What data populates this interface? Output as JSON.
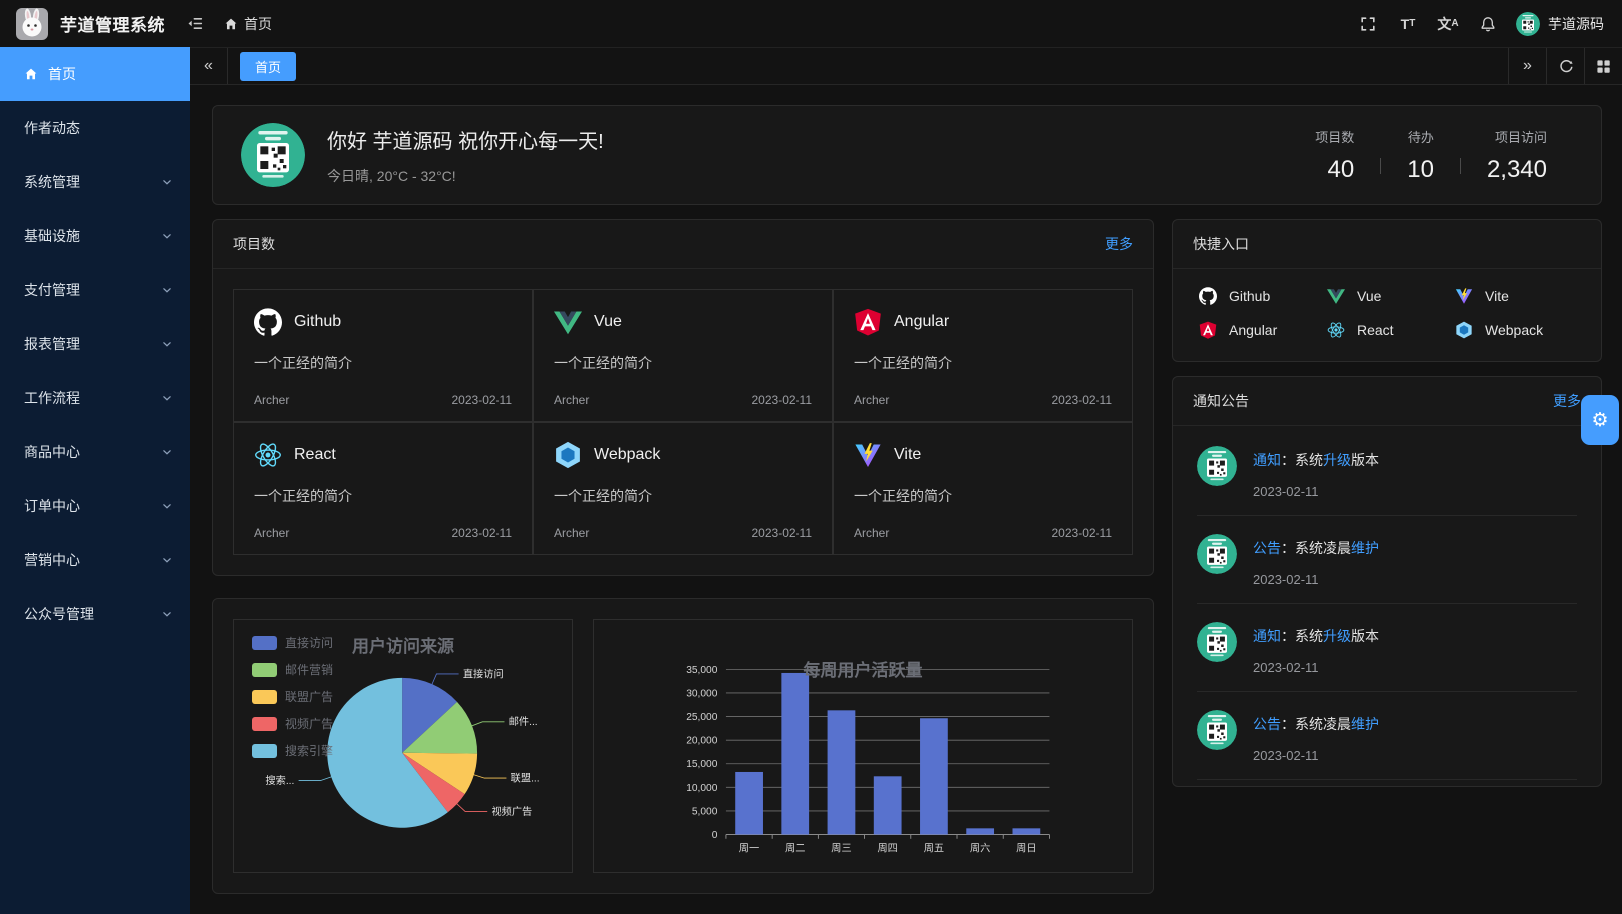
{
  "app": {
    "title": "芋道管理系统"
  },
  "topbar": {
    "breadcrumb_home": "首页",
    "font_size_icon_text": "TT",
    "translate_icon_text": "文A",
    "user_name": "芋道源码"
  },
  "tabbar": {
    "active_tab": "首页"
  },
  "sidebar": {
    "items": [
      {
        "label": "首页",
        "active": true,
        "has_children": false
      },
      {
        "label": "作者动态",
        "active": false,
        "has_children": false
      },
      {
        "label": "系统管理",
        "active": false,
        "has_children": true
      },
      {
        "label": "基础设施",
        "active": false,
        "has_children": true
      },
      {
        "label": "支付管理",
        "active": false,
        "has_children": true
      },
      {
        "label": "报表管理",
        "active": false,
        "has_children": true
      },
      {
        "label": "工作流程",
        "active": false,
        "has_children": true
      },
      {
        "label": "商品中心",
        "active": false,
        "has_children": true
      },
      {
        "label": "订单中心",
        "active": false,
        "has_children": true
      },
      {
        "label": "营销中心",
        "active": false,
        "has_children": true
      },
      {
        "label": "公众号管理",
        "active": false,
        "has_children": true
      }
    ]
  },
  "welcome": {
    "greeting": "你好 芋道源码 祝你开心每一天!",
    "weather": "今日晴, 20°C - 32°C!",
    "stats": [
      {
        "label": "项目数",
        "value": "40"
      },
      {
        "label": "待办",
        "value": "10"
      },
      {
        "label": "项目访问",
        "value": "2,340"
      }
    ]
  },
  "projects": {
    "header": "项目数",
    "more": "更多",
    "desc": "一个正经的简介",
    "author": "Archer",
    "date": "2023-02-11",
    "items": [
      {
        "name": "Github",
        "icon": "github"
      },
      {
        "name": "Vue",
        "icon": "vue"
      },
      {
        "name": "Angular",
        "icon": "angular"
      },
      {
        "name": "React",
        "icon": "react"
      },
      {
        "name": "Webpack",
        "icon": "webpack"
      },
      {
        "name": "Vite",
        "icon": "vite"
      }
    ]
  },
  "shortcuts": {
    "header": "快捷入口",
    "items": [
      {
        "label": "Github",
        "icon": "github"
      },
      {
        "label": "Vue",
        "icon": "vue"
      },
      {
        "label": "Vite",
        "icon": "vite"
      },
      {
        "label": "Angular",
        "icon": "angular"
      },
      {
        "label": "React",
        "icon": "react"
      },
      {
        "label": "Webpack",
        "icon": "webpack"
      }
    ]
  },
  "notice": {
    "header": "通知公告",
    "more": "更多",
    "items": [
      {
        "tag": "通知",
        "pre": "：系统",
        "hl": "升级",
        "post": "版本",
        "date": "2023-02-11"
      },
      {
        "tag": "公告",
        "pre": "：系统凌晨",
        "hl": "维护",
        "post": "",
        "date": "2023-02-11"
      },
      {
        "tag": "通知",
        "pre": "：系统",
        "hl": "升级",
        "post": "版本",
        "date": "2023-02-11"
      },
      {
        "tag": "公告",
        "pre": "：系统凌晨",
        "hl": "维护",
        "post": "",
        "date": "2023-02-11"
      }
    ]
  },
  "chart_data": [
    {
      "type": "pie",
      "title": "用户访问来源",
      "legend_position": "top-left",
      "legend": [
        "直接访问",
        "邮件营销",
        "联盟广告",
        "视频广告",
        "搜索引擎"
      ],
      "display_labels": [
        "直接访问",
        "邮件...",
        "联盟...",
        "视频广告",
        "搜索..."
      ],
      "values": [
        335,
        310,
        234,
        135,
        1548
      ],
      "colors": [
        "#5470c6",
        "#91cc75",
        "#fac858",
        "#ee6666",
        "#73c0de"
      ]
    },
    {
      "type": "bar",
      "title": "每周用户活跃量",
      "categories": [
        "周一",
        "周二",
        "周三",
        "周四",
        "周五",
        "周六",
        "周日"
      ],
      "values": [
        13253,
        34235,
        26321,
        12340,
        24643,
        1322,
        1324
      ],
      "ylim": [
        0,
        35000
      ],
      "ytick_step": 5000,
      "bar_color": "#5872ce",
      "grid": true,
      "xlabel": "",
      "ylabel": ""
    }
  ],
  "colors": {
    "primary": "#459dfe",
    "link": "#409eff",
    "sidebar_bg": "#0c1c33",
    "card_bg": "#181818",
    "page_bg": "#121212",
    "qr_green": "#31b292"
  }
}
